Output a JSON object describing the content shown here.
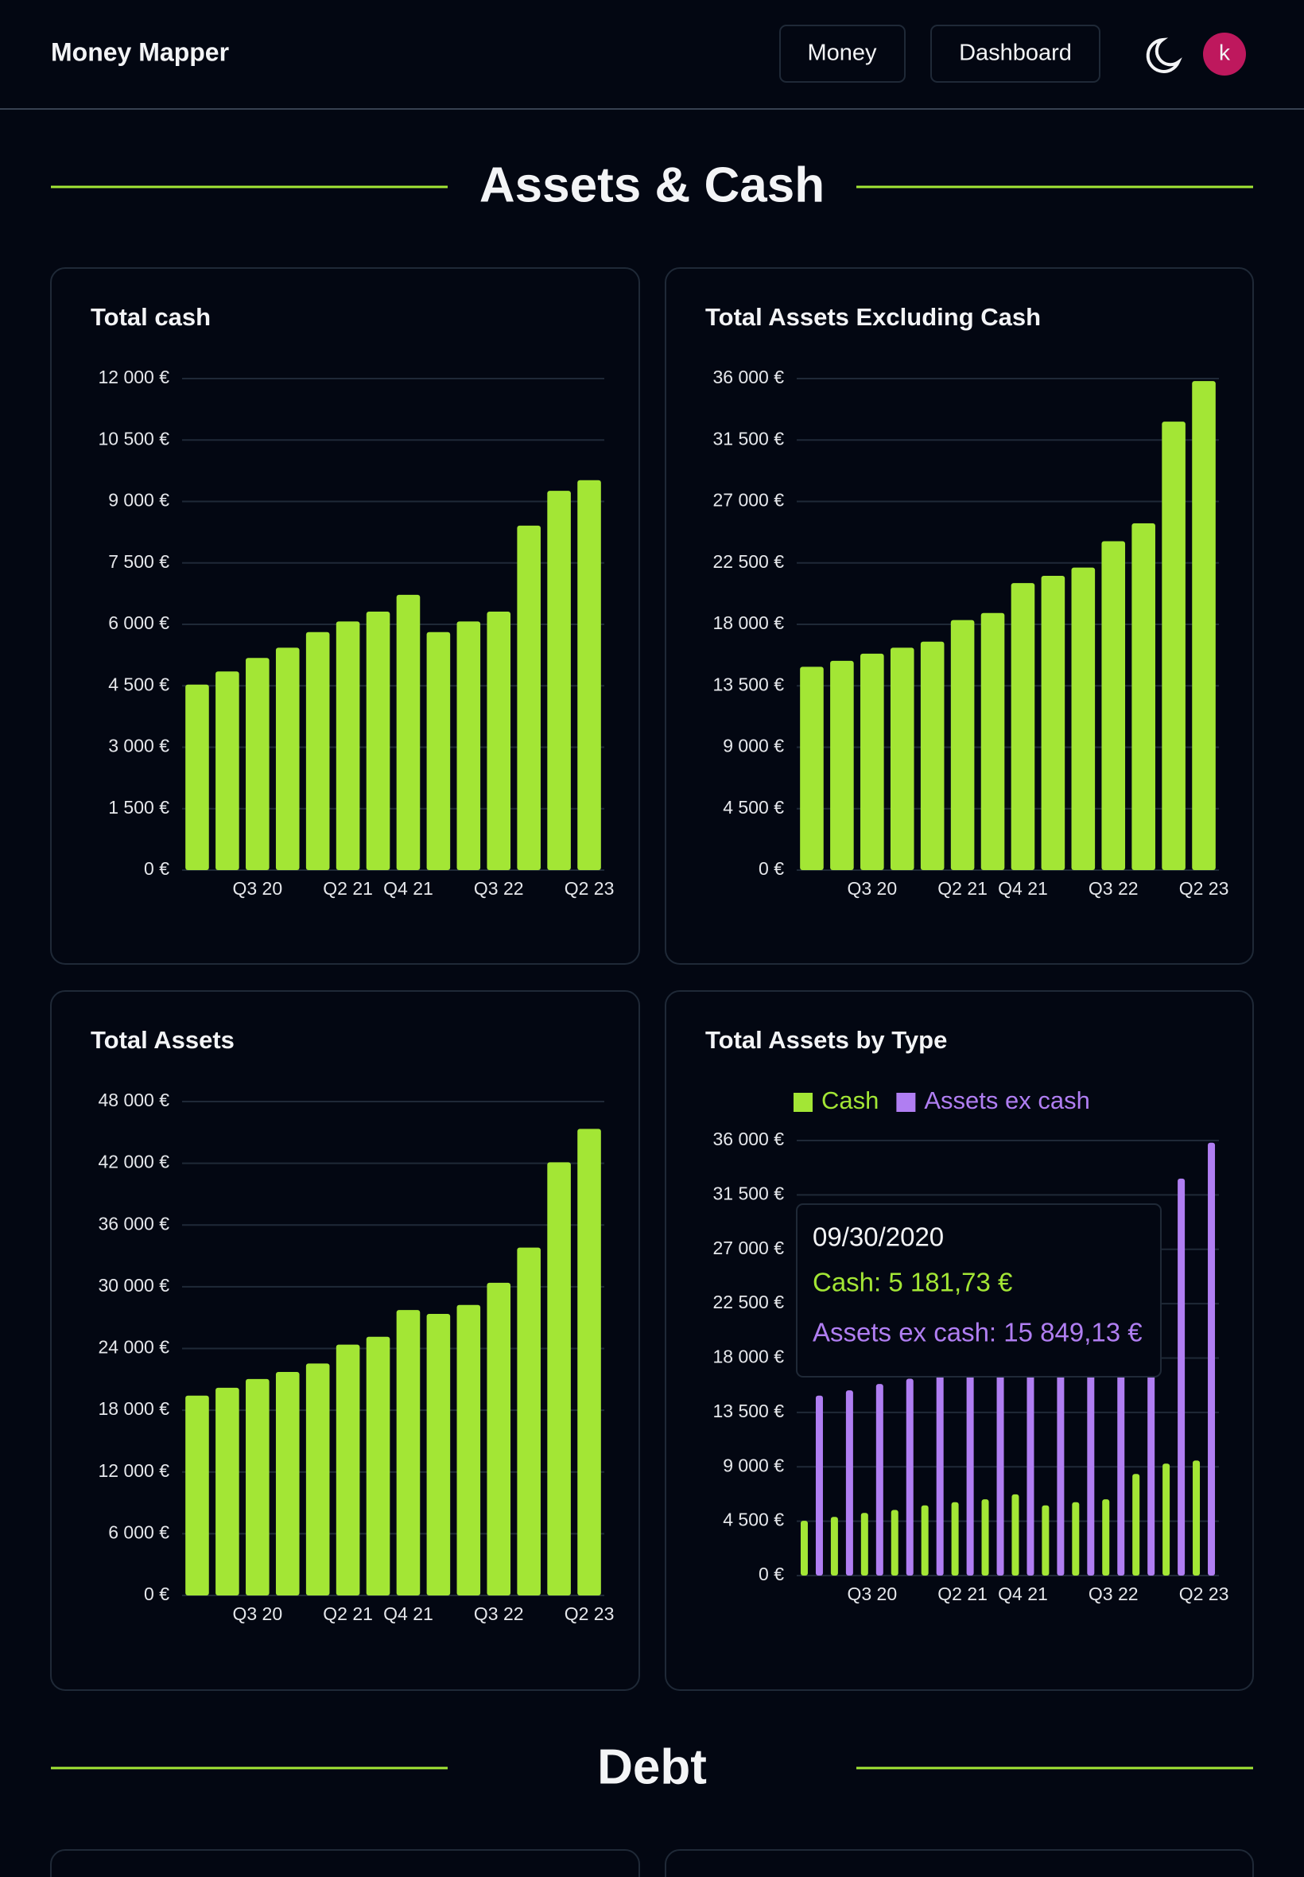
{
  "header": {
    "brand": "Money Mapper",
    "nav": [
      "Money",
      "Dashboard"
    ],
    "avatar": "k"
  },
  "sections": [
    "Assets & Cash",
    "Debt"
  ],
  "chart_data": [
    {
      "type": "bar",
      "title": "Total cash",
      "categories": [
        null,
        null,
        "Q3 20",
        null,
        null,
        "Q2 21",
        null,
        "Q4 21",
        null,
        null,
        "Q3 22",
        null,
        null,
        "Q2 23"
      ],
      "values": [
        4530,
        4850,
        5180,
        5430,
        5810,
        6070,
        6310,
        6720,
        5810,
        6070,
        6310,
        8410,
        9260,
        9520
      ],
      "color": "#a3e635",
      "ylim": [
        0,
        12000
      ],
      "yticks": [
        {
          "value": 0,
          "label": "0 €"
        },
        {
          "value": 1500,
          "label": "1 500 €"
        },
        {
          "value": 3000,
          "label": "3 000 €"
        },
        {
          "value": 4500,
          "label": "4 500 €"
        },
        {
          "value": 6000,
          "label": "6 000 €"
        },
        {
          "value": 7500,
          "label": "7 500 €"
        },
        {
          "value": 9000,
          "label": "9 000 €"
        },
        {
          "value": 10500,
          "label": "10 500 €"
        },
        {
          "value": 12000,
          "label": "12 000 €"
        }
      ],
      "grid": true
    },
    {
      "type": "bar",
      "title": "Total Assets Excluding Cash",
      "categories": [
        null,
        null,
        "Q3 20",
        null,
        null,
        "Q2 21",
        null,
        "Q4 21",
        null,
        null,
        "Q3 22",
        null,
        null,
        "Q2 23"
      ],
      "values": [
        14890,
        15330,
        15850,
        16290,
        16730,
        18310,
        18830,
        21020,
        21550,
        22160,
        24090,
        25400,
        32850,
        35820
      ],
      "color": "#a3e635",
      "ylim": [
        0,
        36000
      ],
      "yticks": [
        {
          "value": 0,
          "label": "0 €"
        },
        {
          "value": 4500,
          "label": "4 500 €"
        },
        {
          "value": 9000,
          "label": "9 000 €"
        },
        {
          "value": 13500,
          "label": "13 500 €"
        },
        {
          "value": 18000,
          "label": "18 000 €"
        },
        {
          "value": 22500,
          "label": "22 500 €"
        },
        {
          "value": 27000,
          "label": "27 000 €"
        },
        {
          "value": 31500,
          "label": "31 500 €"
        },
        {
          "value": 36000,
          "label": "36 000 €"
        }
      ],
      "grid": true
    },
    {
      "type": "bar",
      "title": "Total Assets",
      "categories": [
        null,
        null,
        "Q3 20",
        null,
        null,
        "Q2 21",
        null,
        "Q4 21",
        null,
        null,
        "Q3 22",
        null,
        null,
        "Q2 23"
      ],
      "values": [
        19420,
        20180,
        21030,
        21720,
        22540,
        24380,
        25140,
        27740,
        27360,
        28230,
        30390,
        33810,
        42100,
        45340
      ],
      "color": "#a3e635",
      "ylim": [
        0,
        48000
      ],
      "yticks": [
        {
          "value": 0,
          "label": "0 €"
        },
        {
          "value": 6000,
          "label": "6 000 €"
        },
        {
          "value": 12000,
          "label": "12 000 €"
        },
        {
          "value": 18000,
          "label": "18 000 €"
        },
        {
          "value": 24000,
          "label": "24 000 €"
        },
        {
          "value": 30000,
          "label": "30 000 €"
        },
        {
          "value": 36000,
          "label": "36 000 €"
        },
        {
          "value": 42000,
          "label": "42 000 €"
        },
        {
          "value": 48000,
          "label": "48 000 €"
        }
      ],
      "grid": true
    },
    {
      "type": "grouped_bar",
      "title": "Total Assets by Type",
      "categories": [
        null,
        null,
        "Q3 20",
        null,
        null,
        "Q2 21",
        null,
        "Q4 21",
        null,
        null,
        "Q3 22",
        null,
        null,
        "Q2 23"
      ],
      "series": [
        {
          "name": "Cash",
          "color": "#a3e635",
          "values": [
            4530,
            4850,
            5180,
            5430,
            5810,
            6070,
            6310,
            6720,
            5810,
            6070,
            6310,
            8410,
            9260,
            9520
          ]
        },
        {
          "name": "Assets ex cash",
          "color": "#b07ef2",
          "values": [
            14890,
            15330,
            15850,
            16290,
            16730,
            18310,
            18830,
            21020,
            21550,
            22160,
            24090,
            25400,
            32850,
            35820
          ]
        }
      ],
      "legend": "top",
      "ylim": [
        0,
        36000
      ],
      "yticks": [
        {
          "value": 0,
          "label": "0 €"
        },
        {
          "value": 4500,
          "label": "4 500 €"
        },
        {
          "value": 9000,
          "label": "9 000 €"
        },
        {
          "value": 13500,
          "label": "13 500 €"
        },
        {
          "value": 18000,
          "label": "18 000 €"
        },
        {
          "value": 22500,
          "label": "22 500 €"
        },
        {
          "value": 27000,
          "label": "27 000 €"
        },
        {
          "value": 31500,
          "label": "31 500 €"
        },
        {
          "value": 36000,
          "label": "36 000 €"
        }
      ],
      "grid": true,
      "tooltip": {
        "title": "09/30/2020",
        "lines": [
          "Cash: 5 181,73 €",
          "Assets ex cash: 15 849,13 €"
        ]
      }
    }
  ]
}
